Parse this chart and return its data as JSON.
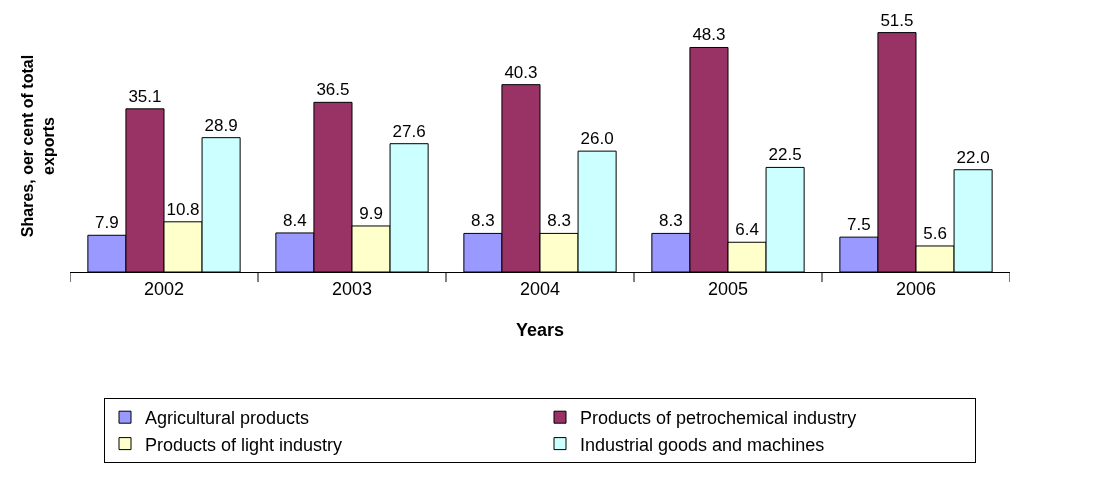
{
  "chart_data": {
    "type": "bar",
    "xlabel": "Years",
    "ylabel": "Shares, oer cent of total exports",
    "categories": [
      "2002",
      "2003",
      "2004",
      "2005",
      "2006"
    ],
    "series": [
      {
        "name": "Agricultural products",
        "color": "#9999ff",
        "values": [
          7.9,
          8.4,
          8.3,
          8.3,
          7.5
        ],
        "value_labels": [
          "7.9",
          "8.4",
          "8.3",
          "8.3",
          "7.5"
        ]
      },
      {
        "name": "Products of petrochemical industry",
        "color": "#993366",
        "values": [
          35.1,
          36.5,
          40.3,
          48.3,
          51.5
        ],
        "value_labels": [
          "35.1",
          "36.5",
          "40.3",
          "48.3",
          "51.5"
        ]
      },
      {
        "name": "Products of light industry",
        "color": "#ffffcc",
        "values": [
          10.8,
          9.9,
          8.3,
          6.4,
          5.6
        ],
        "value_labels": [
          "10.8",
          "9.9",
          "8.3",
          "6.4",
          "5.6"
        ]
      },
      {
        "name": "Industrial goods and machines",
        "color": "#ccffff",
        "values": [
          28.9,
          27.6,
          26.0,
          22.5,
          22.0
        ],
        "value_labels": [
          "28.9",
          "27.6",
          "26.0",
          "22.5",
          "22.0"
        ]
      }
    ],
    "grid": false,
    "legend": "bottom",
    "tick_labels": "x"
  }
}
